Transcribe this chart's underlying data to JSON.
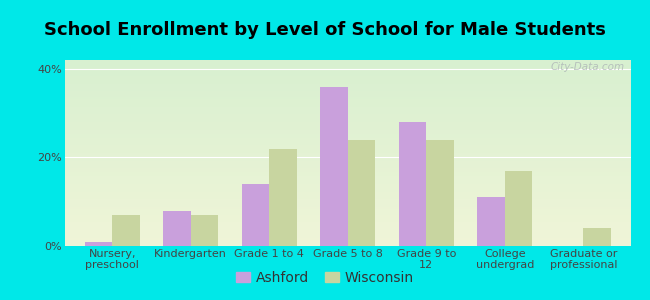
{
  "title": "School Enrollment by Level of School for Male Students",
  "categories": [
    "Nursery,\npreschool",
    "Kindergarten",
    "Grade 1 to 4",
    "Grade 5 to 8",
    "Grade 9 to\n12",
    "College\nundergrad",
    "Graduate or\nprofessional"
  ],
  "ashford": [
    1.0,
    8.0,
    14.0,
    36.0,
    28.0,
    11.0,
    0.0
  ],
  "wisconsin": [
    7.0,
    7.0,
    22.0,
    24.0,
    24.0,
    17.0,
    4.0
  ],
  "ashford_color": "#c9a0dc",
  "wisconsin_color": "#c8d5a0",
  "background_outer": "#00e8e8",
  "grad_top_left": "#d8f0d0",
  "grad_bottom_right": "#f0f5d8",
  "ylim": [
    0,
    42
  ],
  "yticks": [
    0,
    20,
    40
  ],
  "ytick_labels": [
    "0%",
    "20%",
    "40%"
  ],
  "bar_width": 0.35,
  "title_fontsize": 13,
  "tick_fontsize": 8,
  "legend_fontsize": 10,
  "watermark": "City-Data.com"
}
